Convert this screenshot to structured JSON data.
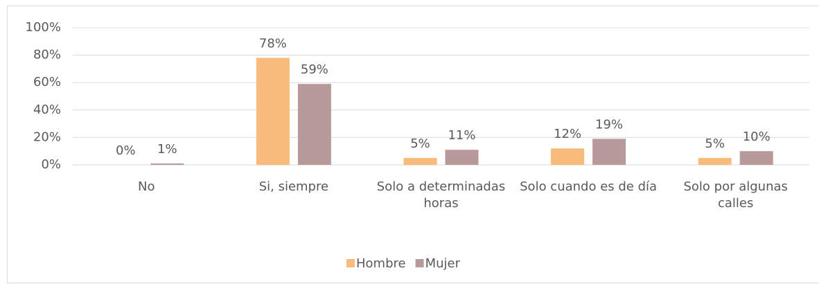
{
  "chart_data": {
    "type": "bar",
    "categories": [
      "No",
      "Si, siempre",
      "Solo a determinadas horas",
      "Solo cuando es de día",
      "Solo por algunas calles"
    ],
    "series": [
      {
        "name": "Hombre",
        "color": "#f9bb7b",
        "values": [
          0,
          78,
          5,
          12,
          5
        ],
        "value_labels": [
          "0%",
          "78%",
          "5%",
          "12%",
          "5%"
        ]
      },
      {
        "name": "Mujer",
        "color": "#b99a9a",
        "values": [
          1,
          59,
          11,
          19,
          10
        ],
        "value_labels": [
          "1%",
          "59%",
          "11%",
          "19%",
          "10%"
        ]
      }
    ],
    "ylim": [
      0,
      100
    ],
    "yticks": [
      {
        "value": 0,
        "label": "0%"
      },
      {
        "value": 20,
        "label": "20%"
      },
      {
        "value": 40,
        "label": "40%"
      },
      {
        "value": 60,
        "label": "60%"
      },
      {
        "value": 80,
        "label": "80%"
      },
      {
        "value": 100,
        "label": "100%"
      }
    ],
    "grid": true,
    "legend": "bottom"
  }
}
